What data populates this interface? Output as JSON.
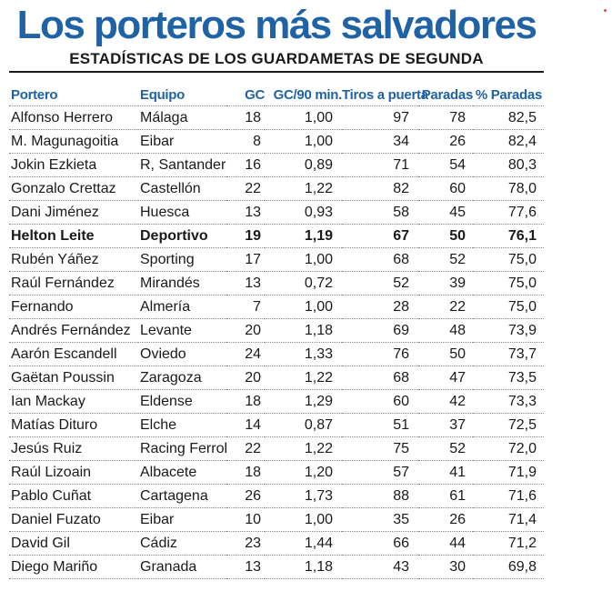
{
  "header": {
    "title": "Los porteros más salvadores",
    "subtitle": "ESTADÍSTICAS DE LOS GUARDAMETAS DE SEGUNDA"
  },
  "colors": {
    "accent": "#1f63a6",
    "text": "#1a1a1a"
  },
  "table": {
    "columns": {
      "portero": "Portero",
      "equipo": "Equipo",
      "gc": "GC",
      "gc90": "GC/90 min.",
      "tiros": "Tiros a puerta",
      "paradas": "Paradas",
      "pct": "% Paradas"
    },
    "rows": [
      {
        "portero": "Alfonso Herrero",
        "equipo": "Málaga",
        "gc": "18",
        "gc90": "1,00",
        "tiros": "97",
        "paradas": "78",
        "pct": "82,5",
        "highlight": false
      },
      {
        "portero": "M. Magunagoitia",
        "equipo": "Eibar",
        "gc": "8",
        "gc90": "1,00",
        "tiros": "34",
        "paradas": "26",
        "pct": "82,4",
        "highlight": false
      },
      {
        "portero": "Jokin Ezkieta",
        "equipo": "R, Santander",
        "gc": "16",
        "gc90": "0,89",
        "tiros": "71",
        "paradas": "54",
        "pct": "80,3",
        "highlight": false
      },
      {
        "portero": "Gonzalo Crettaz",
        "equipo": "Castellón",
        "gc": "22",
        "gc90": "1,22",
        "tiros": "82",
        "paradas": "60",
        "pct": "78,0",
        "highlight": false
      },
      {
        "portero": "Dani Jiménez",
        "equipo": "Huesca",
        "gc": "13",
        "gc90": "0,93",
        "tiros": "58",
        "paradas": "45",
        "pct": "77,6",
        "highlight": false
      },
      {
        "portero": "Helton Leite",
        "equipo": "Deportivo",
        "gc": "19",
        "gc90": "1,19",
        "tiros": "67",
        "paradas": "50",
        "pct": "76,1",
        "highlight": true
      },
      {
        "portero": "Rubén Yáñez",
        "equipo": "Sporting",
        "gc": "17",
        "gc90": "1,00",
        "tiros": "68",
        "paradas": "52",
        "pct": "75,0",
        "highlight": false
      },
      {
        "portero": "Raúl Fernández",
        "equipo": "Mirandés",
        "gc": "13",
        "gc90": "0,72",
        "tiros": "52",
        "paradas": "39",
        "pct": "75,0",
        "highlight": false
      },
      {
        "portero": "Fernando",
        "equipo": "Almería",
        "gc": "7",
        "gc90": "1,00",
        "tiros": "28",
        "paradas": "22",
        "pct": "75,0",
        "highlight": false
      },
      {
        "portero": "Andrés Fernández",
        "equipo": "Levante",
        "gc": "20",
        "gc90": "1,18",
        "tiros": "69",
        "paradas": "48",
        "pct": "73,9",
        "highlight": false
      },
      {
        "portero": "Aarón Escandell",
        "equipo": "Oviedo",
        "gc": "24",
        "gc90": "1,33",
        "tiros": "76",
        "paradas": "50",
        "pct": "73,7",
        "highlight": false
      },
      {
        "portero": "Gaëtan Poussin",
        "equipo": "Zaragoza",
        "gc": "20",
        "gc90": "1,22",
        "tiros": "68",
        "paradas": "47",
        "pct": "73,5",
        "highlight": false
      },
      {
        "portero": "Ian Mackay",
        "equipo": "Eldense",
        "gc": "18",
        "gc90": "1,29",
        "tiros": "60",
        "paradas": "42",
        "pct": "73,3",
        "highlight": false
      },
      {
        "portero": "Matías Dituro",
        "equipo": "Elche",
        "gc": "14",
        "gc90": "0,87",
        "tiros": "51",
        "paradas": "37",
        "pct": "72,5",
        "highlight": false
      },
      {
        "portero": "Jesús Ruiz",
        "equipo": "Racing Ferrol",
        "gc": "22",
        "gc90": "1,22",
        "tiros": "75",
        "paradas": "52",
        "pct": "72,0",
        "highlight": false
      },
      {
        "portero": "Raúl Lizoain",
        "equipo": "Albacete",
        "gc": "18",
        "gc90": "1,20",
        "tiros": "57",
        "paradas": "41",
        "pct": "71,9",
        "highlight": false
      },
      {
        "portero": "Pablo Cuñat",
        "equipo": "Cartagena",
        "gc": "26",
        "gc90": "1,73",
        "tiros": "88",
        "paradas": "61",
        "pct": "71,6",
        "highlight": false
      },
      {
        "portero": "Daniel Fuzato",
        "equipo": "Eibar",
        "gc": "10",
        "gc90": "1,00",
        "tiros": "35",
        "paradas": "26",
        "pct": "71,4",
        "highlight": false
      },
      {
        "portero": "David Gil",
        "equipo": "Cádiz",
        "gc": "23",
        "gc90": "1,44",
        "tiros": "66",
        "paradas": "44",
        "pct": "71,2",
        "highlight": false
      },
      {
        "portero": "Diego Mariño",
        "equipo": "Granada",
        "gc": "13",
        "gc90": "1,18",
        "tiros": "43",
        "paradas": "30",
        "pct": "69,8",
        "highlight": false
      }
    ]
  }
}
